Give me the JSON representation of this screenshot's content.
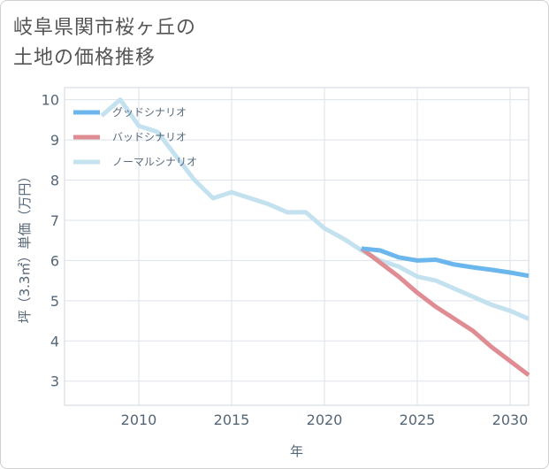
{
  "title": "岐阜県関市桜ヶ丘の\n土地の価格推移",
  "chart_data": {
    "type": "line",
    "xlabel": "年",
    "ylabel": "坪（3.3㎡）単価（万円）",
    "xlim": [
      2006,
      2031
    ],
    "ylim": [
      2.4,
      10.3
    ],
    "xticks": [
      2010,
      2015,
      2020,
      2025,
      2030
    ],
    "yticks": [
      3,
      4,
      5,
      6,
      7,
      8,
      9,
      10
    ],
    "grid": true,
    "legend_position": "top-left",
    "series": [
      {
        "name": "グッドシナリオ",
        "color": "#6bb6ec",
        "x": [
          2022,
          2023,
          2024,
          2025,
          2026,
          2027,
          2028,
          2029,
          2030,
          2031
        ],
        "y": [
          6.3,
          6.25,
          6.08,
          6.0,
          6.02,
          5.9,
          5.83,
          5.77,
          5.7,
          5.62
        ]
      },
      {
        "name": "バッドシナリオ",
        "color": "#e08c93",
        "x": [
          2022,
          2023,
          2024,
          2025,
          2026,
          2027,
          2028,
          2029,
          2030,
          2031
        ],
        "y": [
          6.3,
          5.95,
          5.6,
          5.2,
          4.85,
          4.55,
          4.25,
          3.85,
          3.5,
          3.15
        ]
      },
      {
        "name": "ノーマルシナリオ",
        "color": "#c4e1ef",
        "x": [
          2008,
          2009,
          2010,
          2011,
          2012,
          2013,
          2014,
          2015,
          2016,
          2017,
          2018,
          2019,
          2020,
          2021,
          2022,
          2023,
          2024,
          2025,
          2026,
          2027,
          2028,
          2029,
          2030,
          2031
        ],
        "y": [
          9.6,
          10.0,
          9.35,
          9.2,
          8.6,
          8.0,
          7.55,
          7.7,
          7.55,
          7.4,
          7.2,
          7.2,
          6.8,
          6.55,
          6.25,
          6.0,
          5.85,
          5.6,
          5.5,
          5.3,
          5.1,
          4.9,
          4.75,
          4.55
        ]
      }
    ]
  }
}
